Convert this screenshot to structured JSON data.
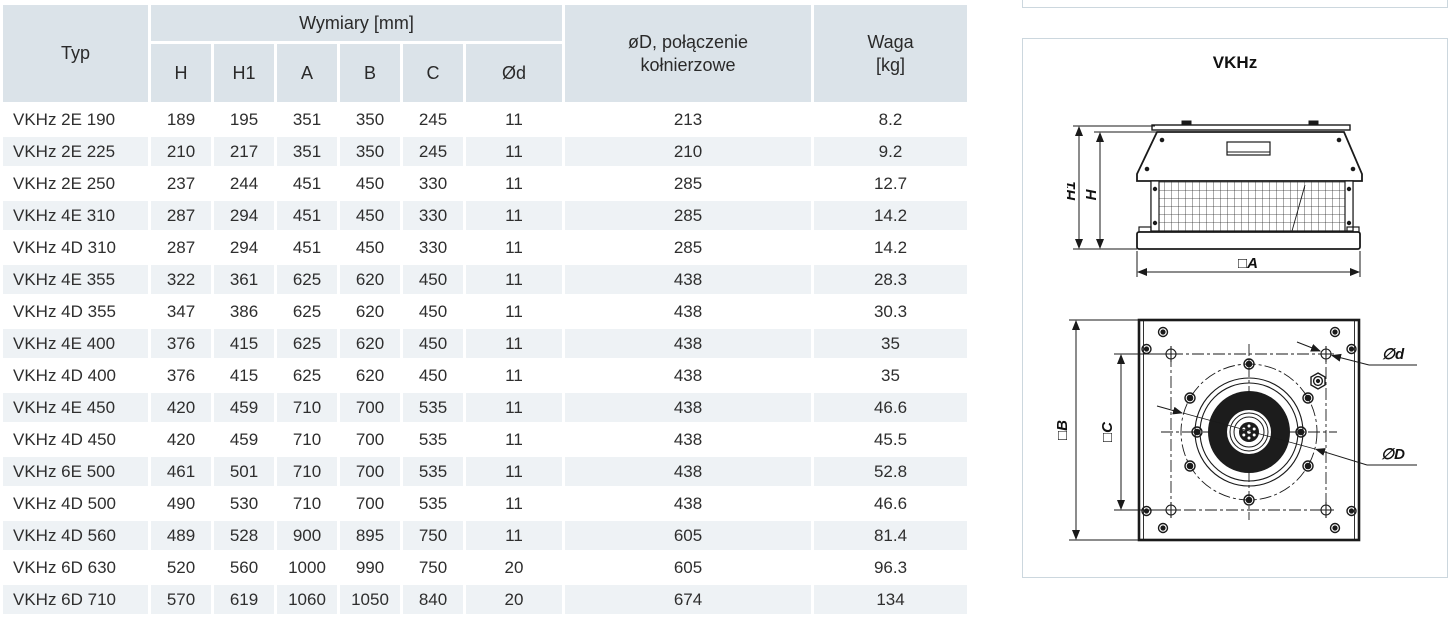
{
  "table": {
    "header": {
      "typ": "Typ",
      "dimensions_group": "Wymiary [mm]",
      "dim_cols": [
        "H",
        "H1",
        "A",
        "B",
        "C",
        "Ød"
      ],
      "flange_line1": "øD, połączenie",
      "flange_line2": "kołnierzowe",
      "waga_line1": "Waga",
      "waga_line2": "[kg]"
    },
    "rows": [
      [
        "VKHz 2E 190",
        "189",
        "195",
        "351",
        "350",
        "245",
        "11",
        "213",
        "8.2"
      ],
      [
        "VKHz 2E 225",
        "210",
        "217",
        "351",
        "350",
        "245",
        "11",
        "210",
        "9.2"
      ],
      [
        "VKHz 2E 250",
        "237",
        "244",
        "451",
        "450",
        "330",
        "11",
        "285",
        "12.7"
      ],
      [
        "VKHz 4E 310",
        "287",
        "294",
        "451",
        "450",
        "330",
        "11",
        "285",
        "14.2"
      ],
      [
        "VKHz 4D 310",
        "287",
        "294",
        "451",
        "450",
        "330",
        "11",
        "285",
        "14.2"
      ],
      [
        "VKHz 4E 355",
        "322",
        "361",
        "625",
        "620",
        "450",
        "11",
        "438",
        "28.3"
      ],
      [
        "VKHz 4D 355",
        "347",
        "386",
        "625",
        "620",
        "450",
        "11",
        "438",
        "30.3"
      ],
      [
        "VKHz 4E 400",
        "376",
        "415",
        "625",
        "620",
        "450",
        "11",
        "438",
        "35"
      ],
      [
        "VKHz 4D 400",
        "376",
        "415",
        "625",
        "620",
        "450",
        "11",
        "438",
        "35"
      ],
      [
        "VKHz 4E 450",
        "420",
        "459",
        "710",
        "700",
        "535",
        "11",
        "438",
        "46.6"
      ],
      [
        "VKHz 4D 450",
        "420",
        "459",
        "710",
        "700",
        "535",
        "11",
        "438",
        "45.5"
      ],
      [
        "VKHz 6E 500",
        "461",
        "501",
        "710",
        "700",
        "535",
        "11",
        "438",
        "52.8"
      ],
      [
        "VKHz 4D 500",
        "490",
        "530",
        "710",
        "700",
        "535",
        "11",
        "438",
        "46.6"
      ],
      [
        "VKHz 4D 560",
        "489",
        "528",
        "900",
        "895",
        "750",
        "11",
        "605",
        "81.4"
      ],
      [
        "VKHz 6D 630",
        "520",
        "560",
        "1000",
        "990",
        "750",
        "20",
        "605",
        "96.3"
      ],
      [
        "VKHz 6D 710",
        "570",
        "619",
        "1060",
        "1050",
        "840",
        "20",
        "674",
        "134"
      ]
    ]
  },
  "drawing": {
    "title": "VKHz",
    "side_view": {
      "h1": "H1",
      "h": "H",
      "a": "□A"
    },
    "bottom_view": {
      "b": "□B",
      "c": "□C",
      "d_small": "∅d",
      "d_big": "∅D"
    }
  },
  "colors": {
    "header_bg": "#dbe3e9",
    "row_alt_bg": "#eef2f5",
    "panel_border": "#ccd7de",
    "line": "#1a1a1a"
  }
}
